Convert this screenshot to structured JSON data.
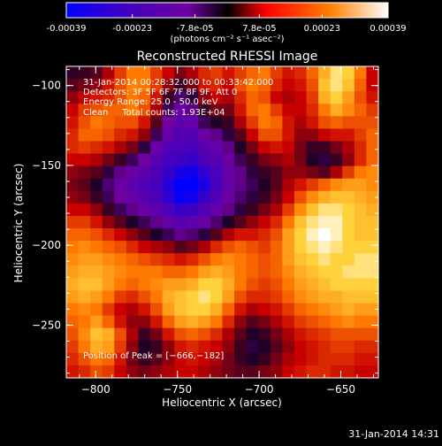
{
  "colorbar": {
    "tick_labels": [
      "-0.00039",
      "-0.00023",
      "-7.8e-05",
      "7.8e-05",
      "0.00023",
      "0.00039"
    ],
    "tick_values": [
      -0.00039,
      -0.00023,
      -7.8e-05,
      7.8e-05,
      0.00023,
      0.00039
    ],
    "range": [
      -0.00039,
      0.00039
    ],
    "unit_label": "(photons cm⁻² s⁻¹ asec⁻²)",
    "colors": [
      "#0000ff",
      "#4000c0",
      "#7000a0",
      "#000000",
      "#ff0000",
      "#ff8000",
      "#ffffff"
    ]
  },
  "chart_data": {
    "type": "heatmap",
    "title": "Reconstructed RHESSI Image",
    "xlabel": "Heliocentric X (arcsec)",
    "ylabel": "Heliocentric Y (arcsec)",
    "xlim": [
      -818,
      -627
    ],
    "ylim": [
      -283,
      -88
    ],
    "x_ticks": [
      -800,
      -750,
      -700,
      -650
    ],
    "y_ticks": [
      -100,
      -150,
      -200,
      -250
    ],
    "x_tick_labels": [
      "−800",
      "−750",
      "−700",
      "−650"
    ],
    "y_tick_labels": [
      "−100",
      "−150",
      "−200",
      "−250"
    ],
    "annotations": [
      "31-Jan-2014 00:28:32.000 to 00:33:42.000",
      "Detectors: 3F 5F 6F 7F 8F 9F, Att 0",
      "Energy Range: 25.0 - 50.0 keV",
      "Clean     Total counts: 1.93E+04"
    ],
    "peak_label": "Position of Peak = [−666,−182]",
    "peak_position": [
      -666,
      -182
    ],
    "heat_grid": [
      [
        0.03,
        0.05,
        0.1,
        0.25,
        0.45,
        0.6,
        0.6,
        0.45,
        0.3,
        0.15,
        0.25,
        0.4,
        0.45,
        0.35,
        0.45,
        0.55,
        0.6,
        0.45,
        0.35,
        0.4,
        0.55,
        0.75,
        0.9,
        0.85,
        0.6,
        0.3
      ],
      [
        0.1,
        0.15,
        0.2,
        0.35,
        0.5,
        0.62,
        0.6,
        0.45,
        0.2,
        0.05,
        0.15,
        0.35,
        0.4,
        0.3,
        0.5,
        0.6,
        0.55,
        0.4,
        0.3,
        0.35,
        0.5,
        0.8,
        0.9,
        0.8,
        0.55,
        0.3
      ],
      [
        0.2,
        0.3,
        0.35,
        0.4,
        0.5,
        0.6,
        0.55,
        0.35,
        0.05,
        -0.15,
        -0.05,
        0.2,
        0.3,
        0.25,
        0.4,
        0.55,
        0.5,
        0.3,
        0.25,
        0.3,
        0.45,
        0.75,
        0.85,
        0.7,
        0.5,
        0.35
      ],
      [
        0.3,
        0.45,
        0.5,
        0.55,
        0.55,
        0.6,
        0.5,
        0.25,
        -0.1,
        -0.3,
        -0.2,
        0.05,
        0.15,
        0.15,
        0.35,
        0.55,
        0.6,
        0.45,
        0.3,
        0.3,
        0.4,
        0.6,
        0.75,
        0.65,
        0.55,
        0.45
      ],
      [
        0.35,
        0.5,
        0.6,
        0.55,
        0.5,
        0.5,
        0.35,
        0.1,
        -0.25,
        -0.4,
        -0.35,
        -0.1,
        0.0,
        0.05,
        0.25,
        0.45,
        0.6,
        0.55,
        0.35,
        0.25,
        0.35,
        0.5,
        0.55,
        0.5,
        0.5,
        0.5
      ],
      [
        0.4,
        0.55,
        0.55,
        0.5,
        0.4,
        0.35,
        0.2,
        -0.1,
        -0.35,
        -0.5,
        -0.5,
        -0.3,
        -0.2,
        -0.05,
        0.1,
        0.3,
        0.5,
        0.5,
        0.35,
        0.2,
        0.2,
        0.3,
        0.35,
        0.35,
        0.45,
        0.55
      ],
      [
        0.4,
        0.45,
        0.4,
        0.35,
        0.25,
        0.15,
        -0.05,
        -0.3,
        -0.5,
        -0.55,
        -0.6,
        -0.45,
        -0.35,
        -0.2,
        0.0,
        0.15,
        0.3,
        0.35,
        0.3,
        0.15,
        0.05,
        0.05,
        0.15,
        0.25,
        0.4,
        0.55
      ],
      [
        0.3,
        0.3,
        0.25,
        0.15,
        0.05,
        -0.1,
        -0.25,
        -0.45,
        -0.6,
        -0.65,
        -0.7,
        -0.55,
        -0.45,
        -0.3,
        -0.1,
        0.05,
        0.15,
        0.2,
        0.25,
        0.15,
        0.0,
        -0.05,
        0.05,
        0.2,
        0.4,
        0.55
      ],
      [
        0.2,
        0.15,
        0.1,
        -0.05,
        -0.2,
        -0.3,
        -0.4,
        -0.55,
        -0.7,
        -0.85,
        -0.9,
        -0.75,
        -0.55,
        -0.35,
        -0.2,
        -0.05,
        0.05,
        0.1,
        0.2,
        0.2,
        0.15,
        0.1,
        0.25,
        0.45,
        0.6,
        0.65
      ],
      [
        0.15,
        0.1,
        0.0,
        -0.15,
        -0.3,
        -0.4,
        -0.5,
        -0.6,
        -0.8,
        -1.0,
        -1.0,
        -0.85,
        -0.6,
        -0.35,
        -0.2,
        -0.1,
        0.0,
        0.1,
        0.25,
        0.35,
        0.45,
        0.55,
        0.65,
        0.7,
        0.7,
        0.65
      ],
      [
        0.2,
        0.15,
        0.05,
        -0.1,
        -0.25,
        -0.35,
        -0.45,
        -0.55,
        -0.75,
        -0.95,
        -0.9,
        -0.7,
        -0.5,
        -0.3,
        -0.15,
        -0.05,
        0.05,
        0.15,
        0.3,
        0.5,
        0.65,
        0.75,
        0.8,
        0.8,
        0.75,
        0.7
      ],
      [
        0.3,
        0.3,
        0.2,
        0.05,
        -0.1,
        -0.2,
        -0.3,
        -0.4,
        -0.55,
        -0.7,
        -0.65,
        -0.5,
        -0.35,
        -0.2,
        -0.05,
        0.05,
        0.15,
        0.25,
        0.45,
        0.65,
        0.8,
        0.9,
        0.9,
        0.85,
        0.8,
        0.75
      ],
      [
        0.45,
        0.45,
        0.35,
        0.2,
        0.1,
        0.0,
        -0.1,
        -0.2,
        -0.35,
        -0.45,
        -0.4,
        -0.3,
        -0.15,
        0.0,
        0.1,
        0.2,
        0.3,
        0.4,
        0.6,
        0.8,
        0.9,
        0.95,
        0.95,
        0.85,
        0.8,
        0.8
      ],
      [
        0.55,
        0.55,
        0.5,
        0.4,
        0.3,
        0.2,
        0.1,
        0.0,
        -0.1,
        -0.2,
        -0.15,
        -0.05,
        0.1,
        0.25,
        0.35,
        0.35,
        0.4,
        0.5,
        0.7,
        0.85,
        0.95,
        1.0,
        0.95,
        0.85,
        0.8,
        0.8
      ],
      [
        0.6,
        0.65,
        0.6,
        0.55,
        0.5,
        0.4,
        0.3,
        0.25,
        0.2,
        0.1,
        0.15,
        0.25,
        0.4,
        0.5,
        0.55,
        0.5,
        0.45,
        0.55,
        0.7,
        0.85,
        0.9,
        0.95,
        0.9,
        0.85,
        0.85,
        0.85
      ],
      [
        0.65,
        0.7,
        0.7,
        0.65,
        0.6,
        0.55,
        0.5,
        0.45,
        0.4,
        0.35,
        0.4,
        0.5,
        0.6,
        0.65,
        0.6,
        0.55,
        0.5,
        0.55,
        0.7,
        0.8,
        0.85,
        0.9,
        0.85,
        0.85,
        0.9,
        0.9
      ],
      [
        0.7,
        0.75,
        0.75,
        0.7,
        0.65,
        0.6,
        0.6,
        0.6,
        0.55,
        0.55,
        0.6,
        0.7,
        0.75,
        0.7,
        0.6,
        0.55,
        0.5,
        0.55,
        0.65,
        0.75,
        0.8,
        0.85,
        0.85,
        0.9,
        0.9,
        0.9
      ],
      [
        0.75,
        0.8,
        0.8,
        0.7,
        0.6,
        0.55,
        0.6,
        0.65,
        0.7,
        0.7,
        0.75,
        0.85,
        0.85,
        0.75,
        0.6,
        0.5,
        0.45,
        0.5,
        0.6,
        0.7,
        0.75,
        0.8,
        0.85,
        0.85,
        0.85,
        0.85
      ],
      [
        0.7,
        0.75,
        0.7,
        0.6,
        0.45,
        0.4,
        0.5,
        0.6,
        0.75,
        0.8,
        0.85,
        0.9,
        0.85,
        0.7,
        0.5,
        0.4,
        0.4,
        0.45,
        0.55,
        0.65,
        0.7,
        0.75,
        0.75,
        0.8,
        0.8,
        0.8
      ],
      [
        0.6,
        0.65,
        0.6,
        0.45,
        0.3,
        0.25,
        0.35,
        0.5,
        0.7,
        0.8,
        0.85,
        0.85,
        0.75,
        0.55,
        0.35,
        0.25,
        0.3,
        0.35,
        0.45,
        0.55,
        0.6,
        0.65,
        0.7,
        0.75,
        0.7,
        0.7
      ],
      [
        0.55,
        0.6,
        0.7,
        0.55,
        0.35,
        0.2,
        0.2,
        0.35,
        0.55,
        0.7,
        0.75,
        0.7,
        0.6,
        0.4,
        0.2,
        0.1,
        0.15,
        0.25,
        0.35,
        0.45,
        0.5,
        0.55,
        0.6,
        0.65,
        0.6,
        0.6
      ],
      [
        0.5,
        0.65,
        0.8,
        0.75,
        0.5,
        0.25,
        0.05,
        0.15,
        0.35,
        0.5,
        0.55,
        0.5,
        0.4,
        0.25,
        0.1,
        0.0,
        0.05,
        0.15,
        0.25,
        0.35,
        0.4,
        0.45,
        0.5,
        0.5,
        0.5,
        0.5
      ],
      [
        0.45,
        0.6,
        0.75,
        0.7,
        0.45,
        0.2,
        0.0,
        0.05,
        0.2,
        0.35,
        0.4,
        0.35,
        0.3,
        0.2,
        0.05,
        -0.05,
        0.0,
        0.1,
        0.2,
        0.3,
        0.35,
        0.4,
        0.45,
        0.45,
        0.4,
        0.4
      ],
      [
        0.4,
        0.5,
        0.6,
        0.55,
        0.35,
        0.15,
        0.05,
        0.1,
        0.2,
        0.3,
        0.35,
        0.3,
        0.25,
        0.15,
        0.05,
        0.0,
        0.05,
        0.15,
        0.25,
        0.3,
        0.35,
        0.4,
        0.4,
        0.4,
        0.35,
        0.35
      ],
      [
        0.35,
        0.4,
        0.5,
        0.45,
        0.3,
        0.2,
        0.15,
        0.2,
        0.25,
        0.3,
        0.3,
        0.25,
        0.2,
        0.15,
        0.1,
        0.1,
        0.15,
        0.2,
        0.3,
        0.35,
        0.4,
        0.4,
        0.35,
        0.35,
        0.3,
        0.3
      ]
    ]
  },
  "footer": {
    "timestamp": "31-Jan-2014 14:31"
  }
}
